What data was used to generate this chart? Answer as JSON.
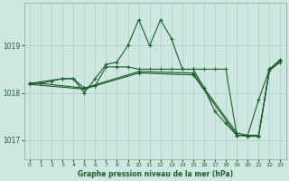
{
  "bg_color": "#cce8e0",
  "grid_color": "#aacccc",
  "line_color": "#1a5c2a",
  "title": "Graphe pression niveau de la mer (hPa)",
  "ylim": [
    1016.6,
    1019.9
  ],
  "xlim": [
    -0.5,
    23.5
  ],
  "yticks": [
    1017,
    1018,
    1019
  ],
  "xticks": [
    0,
    1,
    2,
    3,
    4,
    5,
    6,
    7,
    8,
    9,
    10,
    11,
    12,
    13,
    14,
    15,
    16,
    17,
    18,
    19,
    20,
    21,
    22,
    23
  ],
  "series": [
    {
      "x": [
        0,
        1,
        2,
        3,
        4,
        5,
        6,
        7,
        8,
        9,
        10,
        11,
        12,
        13,
        14,
        15,
        16,
        17,
        18,
        19,
        20,
        21,
        22,
        23
      ],
      "y": [
        1018.2,
        1018.2,
        1018.25,
        1018.3,
        1018.3,
        1018.0,
        1018.3,
        1018.6,
        1018.65,
        1019.0,
        1019.55,
        1019.0,
        1019.55,
        1019.15,
        1018.5,
        1018.5,
        1018.1,
        1017.6,
        1017.35,
        1017.1,
        1017.1,
        1017.85,
        1018.5,
        1018.7
      ]
    },
    {
      "x": [
        0,
        3,
        4,
        5,
        6,
        7,
        8,
        9,
        10,
        11,
        12,
        13,
        14,
        15,
        16,
        17,
        18,
        19,
        20,
        21,
        22,
        23
      ],
      "y": [
        1018.2,
        1018.3,
        1018.3,
        1018.1,
        1018.15,
        1018.55,
        1018.55,
        1018.55,
        1018.5,
        1018.5,
        1018.5,
        1018.5,
        1018.5,
        1018.5,
        1018.5,
        1018.5,
        1018.5,
        1017.1,
        1017.1,
        1017.1,
        1018.5,
        1018.7
      ]
    },
    {
      "x": [
        0,
        1,
        5,
        10,
        15,
        19,
        20,
        21,
        22,
        23
      ],
      "y": [
        1018.2,
        1018.2,
        1018.1,
        1018.45,
        1018.42,
        1017.15,
        1017.1,
        1017.1,
        1018.5,
        1018.68
      ]
    },
    {
      "x": [
        0,
        5,
        10,
        15,
        19,
        20,
        21,
        22,
        23
      ],
      "y": [
        1018.18,
        1018.08,
        1018.42,
        1018.38,
        1017.1,
        1017.08,
        1017.08,
        1018.48,
        1018.65
      ]
    }
  ]
}
